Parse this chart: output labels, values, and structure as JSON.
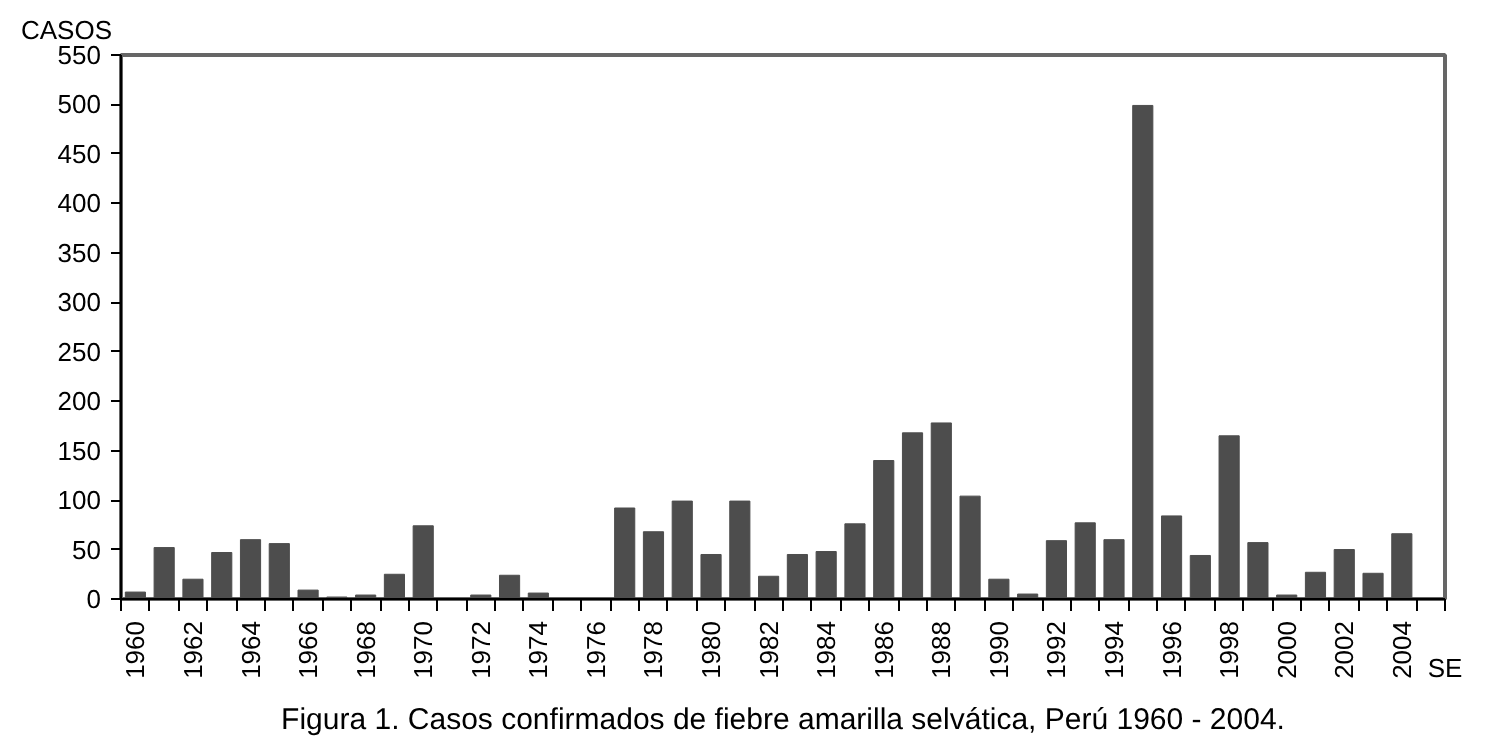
{
  "chart_data": {
    "type": "bar",
    "title": "Figura 1. Casos confirmados de fiebre amarilla selvática, Perú 1960 - 2004.",
    "ylabel": "CASOS",
    "xlabel": "SE",
    "categories": [
      "1960",
      null,
      "1962",
      null,
      "1964",
      null,
      "1966",
      null,
      "1968",
      null,
      "1970",
      null,
      "1972",
      null,
      "1974",
      null,
      "1976",
      null,
      "1978",
      null,
      "1980",
      null,
      "1982",
      null,
      "1984",
      null,
      "1986",
      null,
      "1988",
      null,
      "1990",
      null,
      "1992",
      null,
      "1994",
      null,
      "1996",
      null,
      "1998",
      null,
      "2000",
      null,
      "2002",
      null,
      "2004",
      null
    ],
    "values": [
      7,
      52,
      20,
      47,
      60,
      56,
      9,
      2,
      4,
      25,
      74,
      0,
      4,
      24,
      6,
      0,
      0,
      92,
      68,
      99,
      45,
      99,
      23,
      45,
      48,
      76,
      140,
      168,
      178,
      104,
      20,
      5,
      59,
      77,
      60,
      499,
      84,
      44,
      165,
      57,
      4,
      27,
      50,
      26,
      66,
      null
    ],
    "color": "#4d4d4d",
    "ylim": [
      0,
      550
    ],
    "yticks": [
      0,
      50,
      100,
      150,
      200,
      250,
      300,
      350,
      400,
      450,
      500,
      550
    ],
    "grid": false
  }
}
